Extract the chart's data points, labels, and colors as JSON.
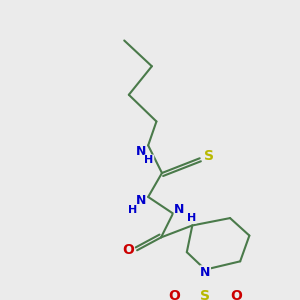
{
  "background_color": "#ebebeb",
  "bond_color": "#4a7a4a",
  "line_width": 1.5,
  "N_color": "#0000cc",
  "S_color": "#b8b800",
  "O_color": "#cc0000",
  "figsize": [
    3.0,
    3.0
  ],
  "dpi": 100,
  "xlim": [
    0,
    300
  ],
  "ylim": [
    0,
    300
  ]
}
